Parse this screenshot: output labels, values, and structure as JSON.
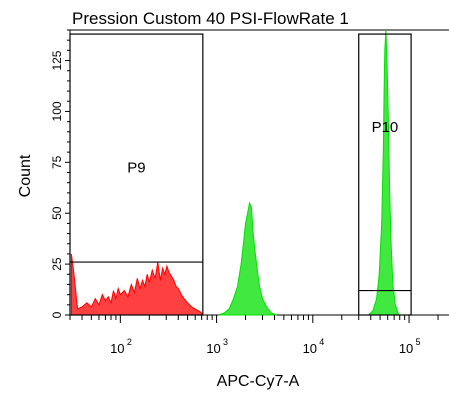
{
  "chart_data": {
    "type": "area",
    "title": "Pression Custom 40 PSI-FlowRate 1",
    "xlabel": "APC-Cy7-A",
    "ylabel": "Count",
    "x_scale": "log",
    "xlim": [
      30,
      260000
    ],
    "ylim": [
      0,
      140
    ],
    "x_ticks": [
      {
        "value": 100,
        "label_base": "10",
        "label_exp": "2"
      },
      {
        "value": 1000,
        "label_base": "10",
        "label_exp": "3"
      },
      {
        "value": 10000,
        "label_base": "10",
        "label_exp": "4"
      },
      {
        "value": 100000,
        "label_base": "10",
        "label_exp": "5"
      }
    ],
    "y_ticks": [
      0,
      25,
      50,
      75,
      100,
      125
    ],
    "y_tick_labels": [
      "0",
      "25",
      "50",
      "75",
      "100",
      "125"
    ],
    "gates": [
      {
        "name": "P9",
        "x_range": [
          30,
          720
        ],
        "y_range": [
          0,
          138
        ],
        "inner_y": 26
      },
      {
        "name": "P10",
        "x_range": [
          30000,
          105000
        ],
        "y_range": [
          0,
          138
        ],
        "inner_y": 12
      }
    ],
    "series": [
      {
        "color": "#ff0000",
        "x": [
          31,
          33,
          36,
          40,
          45,
          50,
          55,
          60,
          65,
          70,
          75,
          80,
          85,
          90,
          95,
          100,
          110,
          120,
          130,
          140,
          150,
          160,
          170,
          180,
          190,
          200,
          215,
          230,
          245,
          260,
          275,
          290,
          305,
          320,
          340,
          360,
          380,
          400,
          430,
          460,
          500,
          550,
          600,
          650,
          700
        ],
        "y": [
          30,
          20,
          3,
          4,
          6,
          4,
          8,
          5,
          10,
          7,
          9,
          6,
          12,
          8,
          13,
          10,
          12,
          9,
          15,
          11,
          18,
          13,
          17,
          14,
          20,
          16,
          22,
          18,
          26,
          17,
          23,
          20,
          24,
          21,
          19,
          17,
          14,
          13,
          10,
          8,
          6,
          4,
          3,
          2,
          1
        ]
      },
      {
        "color": "#00e000",
        "x": [
          1050,
          1200,
          1350,
          1500,
          1650,
          1800,
          1900,
          2000,
          2100,
          2200,
          2300,
          2400,
          2500,
          2650,
          2800,
          3000,
          3300,
          3700,
          4200
        ],
        "y": [
          0,
          1,
          3,
          8,
          14,
          25,
          35,
          45,
          50,
          55,
          53,
          40,
          32,
          22,
          14,
          8,
          4,
          1,
          0
        ]
      },
      {
        "color": "#00e000",
        "x": [
          38000,
          42000,
          46000,
          49000,
          52000,
          54000,
          55000,
          56000,
          57500,
          59000,
          61000,
          63000,
          65000,
          68000,
          72000,
          78000
        ],
        "y": [
          0,
          2,
          8,
          20,
          45,
          80,
          110,
          130,
          140,
          125,
          95,
          60,
          35,
          15,
          5,
          0
        ]
      }
    ]
  }
}
